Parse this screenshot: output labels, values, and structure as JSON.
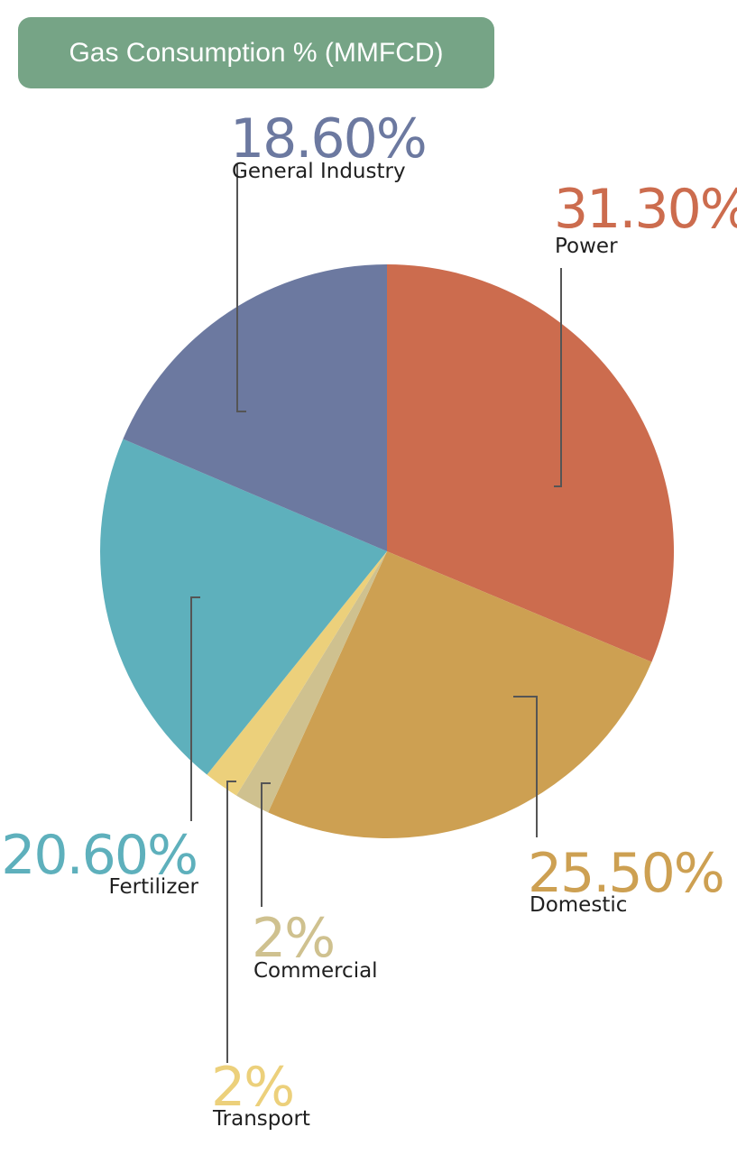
{
  "title": "Gas Consumption % (MMFCD)",
  "chart_data": {
    "type": "pie",
    "title": "Gas Consumption % (MMFCD)",
    "slices": [
      {
        "name": "Power",
        "label": "Power",
        "value": 31.3,
        "value_label": "31.30%",
        "color": "#cc6c4e"
      },
      {
        "name": "Domestic",
        "label": "Domestic",
        "value": 25.5,
        "value_label": "25.50%",
        "color": "#cda052"
      },
      {
        "name": "Commercial",
        "label": "Commercial",
        "value": 2,
        "value_label": "2%",
        "color": "#cfc18f"
      },
      {
        "name": "Transport",
        "label": "Transport",
        "value": 2,
        "value_label": "2%",
        "color": "#ecd07b"
      },
      {
        "name": "Fertilizer",
        "label": "Fertilizer",
        "value": 20.6,
        "value_label": "20.60%",
        "color": "#5eb0bc"
      },
      {
        "name": "General Industry",
        "label": "General Industry",
        "value": 18.6,
        "value_label": "18.60%",
        "color": "#6c79a0"
      }
    ]
  }
}
